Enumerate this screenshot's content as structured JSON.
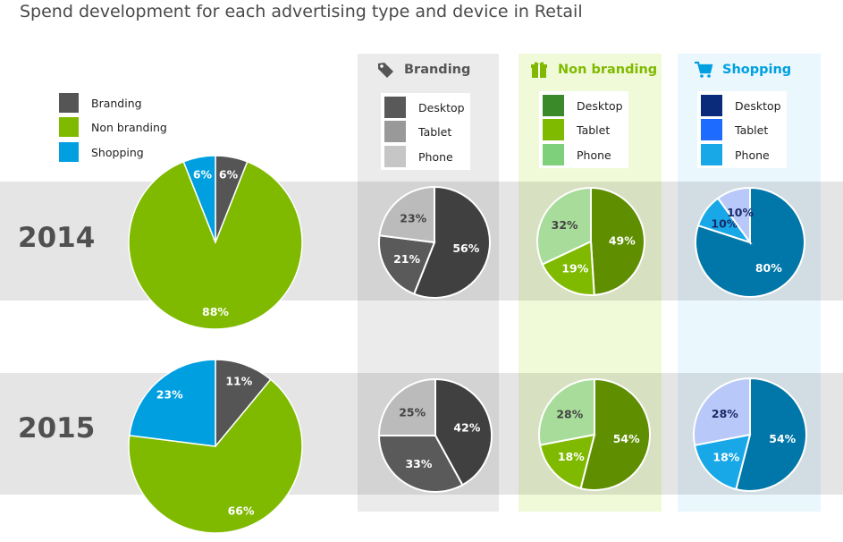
{
  "title": "Spend development for each advertising type and device in Retail",
  "legend": [
    {
      "label": "Branding",
      "color": "#555555"
    },
    {
      "label": "Non branding",
      "color": "#7fba00"
    },
    {
      "label": "Shopping",
      "color": "#00a0e0"
    }
  ],
  "years": [
    "2014",
    "2015"
  ],
  "columns": [
    {
      "key": "branding",
      "title": "Branding",
      "icon": "tag-icon",
      "title_color": "#555555",
      "bg": "#ebebeb",
      "devices": [
        {
          "label": "Desktop",
          "color": "#595959"
        },
        {
          "label": "Tablet",
          "color": "#999999"
        },
        {
          "label": "Phone",
          "color": "#c6c6c6"
        }
      ]
    },
    {
      "key": "non_branding",
      "title": "Non branding",
      "icon": "gift-icon",
      "title_color": "#7fba00",
      "bg": "#f1fad8",
      "devices": [
        {
          "label": "Desktop",
          "color": "#3a8a2a"
        },
        {
          "label": "Tablet",
          "color": "#7fba00"
        },
        {
          "label": "Phone",
          "color": "#7ed07a"
        }
      ]
    },
    {
      "key": "shopping",
      "title": "Shopping",
      "icon": "cart-icon",
      "title_color": "#00a0e0",
      "bg": "#eaf7fd",
      "devices": [
        {
          "label": "Desktop",
          "color": "#0a2a7a"
        },
        {
          "label": "Tablet",
          "color": "#1e6cff"
        },
        {
          "label": "Phone",
          "color": "#18a8e8"
        }
      ]
    }
  ],
  "chart_data": [
    {
      "type": "pie",
      "name": "2014 advertising type",
      "labels": [
        "Branding",
        "Non branding",
        "Shopping"
      ],
      "values": [
        6,
        88,
        6
      ],
      "colors": [
        "#555555",
        "#7fba00",
        "#00a0e0"
      ],
      "value_labels": [
        "6%",
        "88%",
        "6%"
      ]
    },
    {
      "type": "pie",
      "name": "2015 advertising type",
      "labels": [
        "Branding",
        "Non branding",
        "Shopping"
      ],
      "values": [
        11,
        66,
        23
      ],
      "colors": [
        "#555555",
        "#7fba00",
        "#00a0e0"
      ],
      "value_labels": [
        "11%",
        "66%",
        "23%"
      ]
    },
    {
      "type": "pie",
      "name": "2014 Branding by device",
      "labels": [
        "Desktop",
        "Tablet",
        "Phone"
      ],
      "values": [
        56,
        21,
        23
      ],
      "colors": [
        "#404040",
        "#5a5a5a",
        "#bbbbbb"
      ],
      "value_labels": [
        "56%",
        "21%",
        "23%"
      ]
    },
    {
      "type": "pie",
      "name": "2014 Non branding by device",
      "labels": [
        "Desktop",
        "Tablet",
        "Phone"
      ],
      "values": [
        49,
        19,
        32
      ],
      "colors": [
        "#5f8f00",
        "#7fba00",
        "#a8dc9a"
      ],
      "value_labels": [
        "49%",
        "19%",
        "32%"
      ]
    },
    {
      "type": "pie",
      "name": "2014 Shopping by device",
      "labels": [
        "Desktop",
        "Tablet",
        "Phone"
      ],
      "values": [
        80,
        10,
        10
      ],
      "colors": [
        "#0077a8",
        "#18a8e8",
        "#b8c8f8"
      ],
      "value_labels": [
        "80%",
        "10%",
        "10%"
      ]
    },
    {
      "type": "pie",
      "name": "2015 Branding by device",
      "labels": [
        "Desktop",
        "Tablet",
        "Phone"
      ],
      "values": [
        42,
        33,
        25
      ],
      "colors": [
        "#404040",
        "#5a5a5a",
        "#bbbbbb"
      ],
      "value_labels": [
        "42%",
        "33%",
        "25%"
      ]
    },
    {
      "type": "pie",
      "name": "2015 Non branding by device",
      "labels": [
        "Desktop",
        "Tablet",
        "Phone"
      ],
      "values": [
        54,
        18,
        28
      ],
      "colors": [
        "#5f8f00",
        "#7fba00",
        "#a8dc9a"
      ],
      "value_labels": [
        "54%",
        "18%",
        "28%"
      ]
    },
    {
      "type": "pie",
      "name": "2015 Shopping by device",
      "labels": [
        "Desktop",
        "Tablet",
        "Phone"
      ],
      "values": [
        54,
        18,
        28
      ],
      "colors": [
        "#0077a8",
        "#18a8e8",
        "#b8c8f8"
      ],
      "value_labels": [
        "54%",
        "18%",
        "28%"
      ]
    }
  ]
}
